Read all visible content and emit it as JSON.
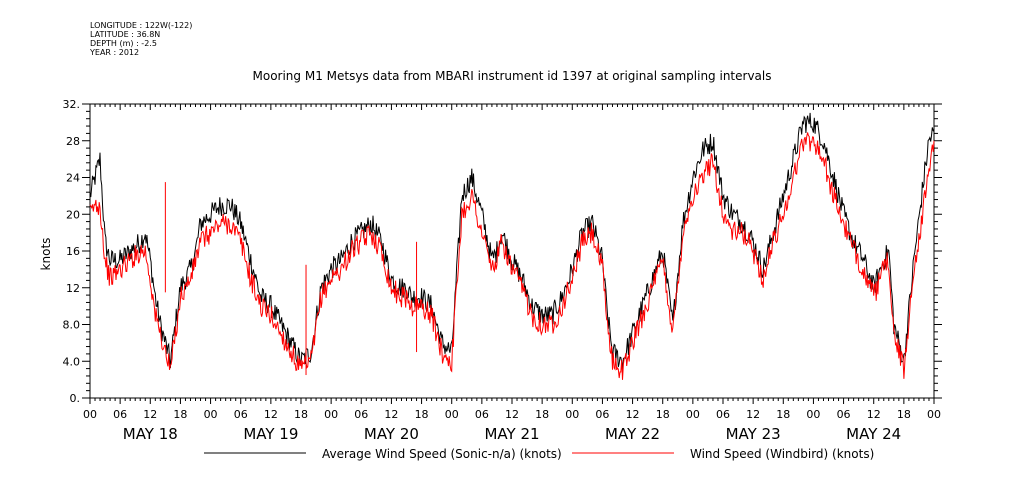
{
  "header": {
    "lines": [
      "LONGITUDE : 122W(-122)",
      "LATITUDE : 36.8N",
      "DEPTH (m) : -2.5",
      "YEAR : 2012"
    ]
  },
  "chart_data": {
    "type": "line",
    "title": "Mooring M1 Metsys data from MBARI instrument id 1397 at original sampling intervals",
    "ylabel": "knots",
    "xlabel": "",
    "ylim": [
      0,
      32
    ],
    "yticks": [
      "0.",
      "4.0",
      "8.0",
      "12",
      "16",
      "20",
      "24",
      "28",
      "32."
    ],
    "ytick_values": [
      0,
      4,
      8,
      12,
      16,
      20,
      24,
      28,
      32
    ],
    "xlim_hours": [
      0,
      168
    ],
    "hour_tick_labels": [
      "00",
      "06",
      "12",
      "18",
      "00",
      "06",
      "12",
      "18",
      "00",
      "06",
      "12",
      "18",
      "00",
      "06",
      "12",
      "18",
      "00",
      "06",
      "12",
      "18",
      "00",
      "06",
      "12",
      "18",
      "00",
      "06",
      "12",
      "18",
      "00"
    ],
    "day_labels": [
      "MAY 18",
      "MAY 19",
      "MAY 20",
      "MAY 21",
      "MAY 22",
      "MAY 23",
      "MAY 24"
    ],
    "grid": false,
    "legend_position": "bottom",
    "series": [
      {
        "name": "Average Wind Speed (Sonic-n/a) (knots)",
        "color": "#000000",
        "x": [
          0,
          1,
          2,
          3,
          4,
          6,
          8,
          10,
          11,
          12,
          13,
          14,
          15,
          16,
          18,
          20,
          21,
          22,
          24,
          26,
          28,
          30,
          32,
          34,
          36,
          38,
          40,
          42,
          44,
          46,
          48,
          50,
          52,
          54,
          56,
          58,
          60,
          62,
          63,
          64,
          66,
          68,
          70,
          72,
          74,
          76,
          78,
          80,
          81,
          82,
          84,
          86,
          88,
          90,
          92,
          94,
          96,
          98,
          100,
          102,
          103,
          104,
          106,
          108,
          110,
          112,
          114,
          116,
          118,
          120,
          122,
          124,
          126,
          128,
          130,
          132,
          134,
          136,
          138,
          140,
          142,
          144,
          146,
          148,
          150,
          152,
          154,
          156,
          158,
          159,
          160,
          162,
          164,
          166,
          167,
          168
        ],
        "y": [
          22,
          24,
          26,
          17,
          15,
          15,
          16,
          17,
          18,
          15,
          11,
          8,
          6,
          4,
          12,
          14,
          16,
          19,
          20,
          21,
          21,
          19,
          15,
          11,
          10,
          8,
          6,
          4,
          5,
          12,
          14,
          15,
          17,
          18,
          19,
          17,
          13,
          12,
          12,
          11,
          11,
          10,
          6,
          5,
          22,
          24,
          20,
          15,
          16,
          18,
          15,
          13,
          10,
          9,
          9,
          11,
          14,
          18,
          19,
          15,
          9,
          5,
          4,
          7,
          10,
          13,
          16,
          8,
          19,
          24,
          27,
          28,
          22,
          20,
          19,
          17,
          14,
          18,
          22,
          26,
          30,
          30,
          28,
          24,
          20,
          17,
          15,
          12,
          15,
          16,
          8,
          4,
          15,
          24,
          28,
          29
        ]
      },
      {
        "name": "Wind Speed (Windbird) (knots)",
        "color": "#ff0000",
        "x": [
          0,
          1,
          2,
          3,
          4,
          6,
          8,
          10,
          11,
          12,
          13,
          14,
          15,
          16,
          18,
          20,
          21,
          22,
          24,
          26,
          28,
          30,
          32,
          34,
          36,
          38,
          40,
          42,
          44,
          46,
          48,
          50,
          52,
          54,
          56,
          58,
          60,
          62,
          63,
          64,
          66,
          68,
          70,
          72,
          74,
          76,
          78,
          80,
          81,
          82,
          84,
          86,
          88,
          90,
          92,
          94,
          96,
          98,
          100,
          102,
          103,
          104,
          106,
          108,
          110,
          112,
          114,
          116,
          118,
          120,
          122,
          124,
          126,
          128,
          130,
          132,
          134,
          136,
          138,
          140,
          142,
          144,
          146,
          148,
          150,
          152,
          154,
          156,
          158,
          159,
          160,
          162,
          164,
          166,
          167,
          168
        ],
        "y": [
          20,
          21,
          21,
          15,
          13,
          14,
          15,
          16,
          16,
          13,
          9,
          7,
          5,
          3,
          11,
          13,
          15,
          17,
          18,
          19,
          19,
          17,
          13,
          10,
          9,
          7,
          5,
          3,
          4,
          11,
          13,
          14,
          16,
          17,
          18,
          16,
          12,
          11,
          11,
          10,
          10,
          9,
          5,
          4,
          20,
          22,
          18,
          14,
          15,
          17,
          14,
          12,
          9,
          8,
          8,
          10,
          13,
          17,
          18,
          14,
          8,
          4,
          3,
          6,
          9,
          12,
          15,
          7,
          18,
          22,
          24,
          26,
          20,
          18,
          18,
          16,
          13,
          17,
          20,
          24,
          28,
          28,
          26,
          22,
          19,
          16,
          14,
          11,
          14,
          15,
          7,
          3,
          14,
          21,
          25,
          28
        ]
      }
    ],
    "spikes": [
      {
        "x": 15,
        "y": 23.5
      },
      {
        "x": 43,
        "y": 14.5
      },
      {
        "x": 65,
        "y": 17
      }
    ]
  }
}
